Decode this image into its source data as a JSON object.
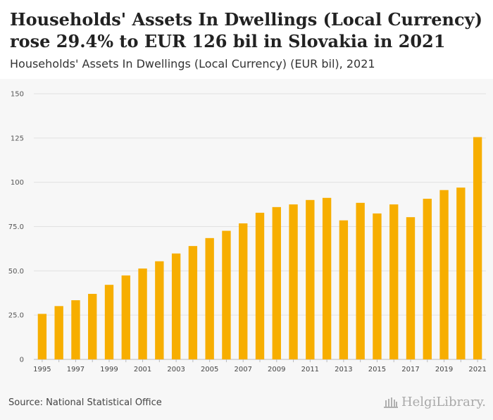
{
  "header": {
    "title_line1": "Households' Assets In Dwellings (Local Currency)",
    "title_line2": "rose 29.4% to EUR 126 bil in Slovakia in 2021",
    "subtitle": "Households' Assets In Dwellings (Local Currency) (EUR bil), 2021"
  },
  "footer": {
    "source": "Source: National Statistical Office",
    "brand": "HelgiLibrary."
  },
  "colors": {
    "bar": "#f7ae00",
    "grid": "#e2e2e2",
    "axis": "#bbbbbb"
  },
  "chart_data": {
    "type": "bar",
    "title": "Households' Assets In Dwellings (Local Currency) (EUR bil), 2021",
    "xlabel": "",
    "ylabel": "",
    "ylim": [
      0,
      150
    ],
    "yticks": [
      0,
      25,
      50,
      75,
      100,
      125,
      150
    ],
    "ytick_labels": [
      "0",
      "25.0",
      "50.0",
      "75.0",
      "100",
      "125",
      "150"
    ],
    "grid": true,
    "categories": [
      "1995",
      "1996",
      "1997",
      "1998",
      "1999",
      "2000",
      "2001",
      "2002",
      "2003",
      "2004",
      "2005",
      "2006",
      "2007",
      "2008",
      "2009",
      "2010",
      "2011",
      "2012",
      "2013",
      "2014",
      "2015",
      "2016",
      "2017",
      "2018",
      "2019",
      "2020",
      "2021"
    ],
    "xtick_labels": [
      "1995",
      "1997",
      "1999",
      "2001",
      "2003",
      "2005",
      "2007",
      "2009",
      "2011",
      "2013",
      "2015",
      "2017",
      "2019",
      "2021"
    ],
    "values": [
      25.7,
      30.1,
      33.4,
      37.0,
      42.1,
      47.4,
      51.3,
      55.4,
      59.8,
      64.0,
      68.5,
      72.6,
      76.8,
      82.8,
      86.0,
      87.5,
      90.0,
      91.2,
      78.5,
      88.4,
      82.4,
      87.5,
      80.3,
      90.7,
      95.6,
      97.0,
      125.5
    ]
  }
}
